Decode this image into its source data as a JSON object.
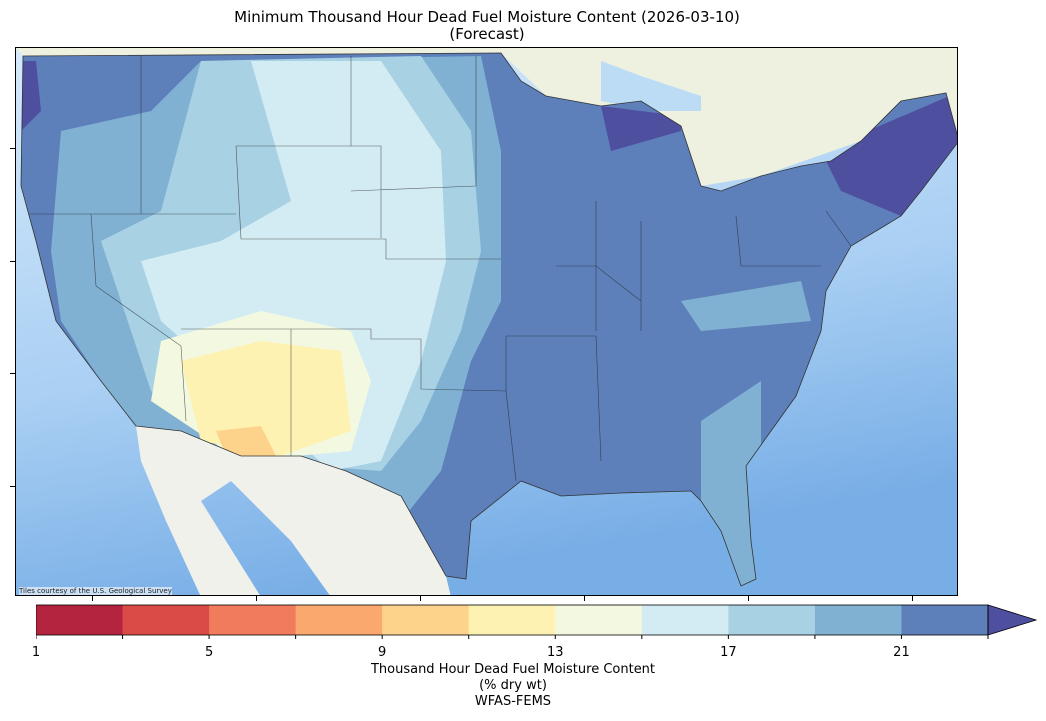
{
  "title": {
    "line1": "Minimum Thousand Hour Dead Fuel Moisture Content (2026-03-10)",
    "line2": "(Forecast)"
  },
  "map": {
    "attribution": "Tiles courtesy of the U.S. Geological Survey",
    "region": "Contiguous United States",
    "basemap_colors": {
      "ocean": "#cfe6fa",
      "deep_ocean": "#7fb2e6",
      "land": "#eef0e4"
    }
  },
  "colorbar": {
    "label_line1": "Thousand Hour Dead Fuel Moisture Content",
    "label_line2": "(% dry wt)",
    "label_line3": "WFAS-FEMS",
    "min": 1,
    "max": 23,
    "step": 2,
    "extend": "max",
    "tick_labels": [
      "1",
      "5",
      "9",
      "13",
      "17",
      "21"
    ],
    "colors": [
      "#b5243f",
      "#da4b47",
      "#f07b5d",
      "#faa86e",
      "#fdd38c",
      "#fef2b3",
      "#f3f9e1",
      "#d3ecf3",
      "#a8d2e4",
      "#80b1d3",
      "#5d80bb"
    ],
    "extend_color": "#4f4fa0"
  }
}
